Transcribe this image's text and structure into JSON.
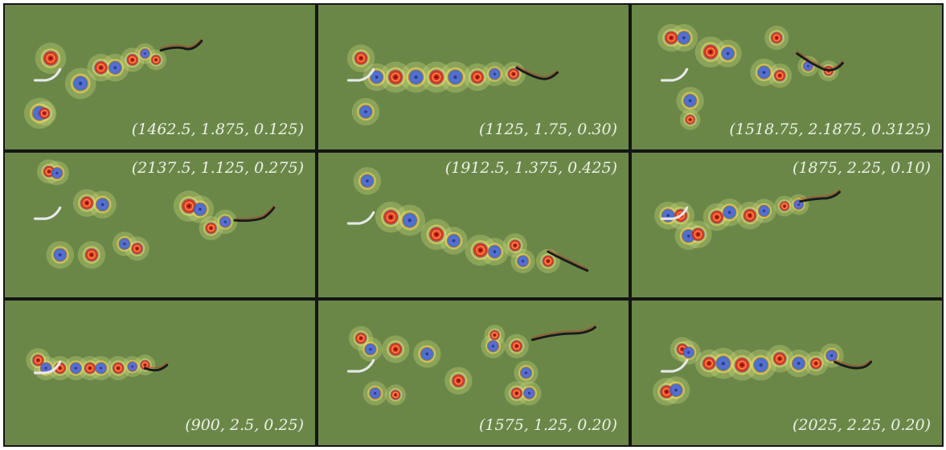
{
  "figure": {
    "panels": [
      {
        "id": "p1",
        "caption": "(1462.5, 1.875, 0.125)",
        "caption_position": "bottom-right"
      },
      {
        "id": "p2",
        "caption": "(1125, 1.75, 0.30)",
        "caption_position": "bottom-right"
      },
      {
        "id": "p3",
        "caption": "(1518.75, 2.1875, 0.3125)",
        "caption_position": "bottom-right"
      },
      {
        "id": "p4",
        "caption": "(2137.5, 1.125, 0.275)",
        "caption_position": "top-right"
      },
      {
        "id": "p5",
        "caption": "(1912.5, 1.375, 0.425)",
        "caption_position": "top-right"
      },
      {
        "id": "p6",
        "caption": "(1875, 2.25, 0.10)",
        "caption_position": "top-right"
      },
      {
        "id": "p7",
        "caption": "(900, 2.5, 0.25)",
        "caption_position": "bottom-right"
      },
      {
        "id": "p8",
        "caption": "(1575, 1.25, 0.20)",
        "caption_position": "bottom-right"
      },
      {
        "id": "p9",
        "caption": "(2025, 2.25, 0.20)",
        "caption_position": "bottom-right"
      }
    ],
    "colors": {
      "background": "#6a8748",
      "border": "#141414",
      "leading_plate": "#e8e8e8",
      "flexible_filament": "#1a1a1a",
      "positive_vortex": "#d8261c",
      "negative_vortex": "#2a6fd6",
      "vortex_halo": "#f2e35a",
      "caption_text": "#eef0e6"
    }
  }
}
